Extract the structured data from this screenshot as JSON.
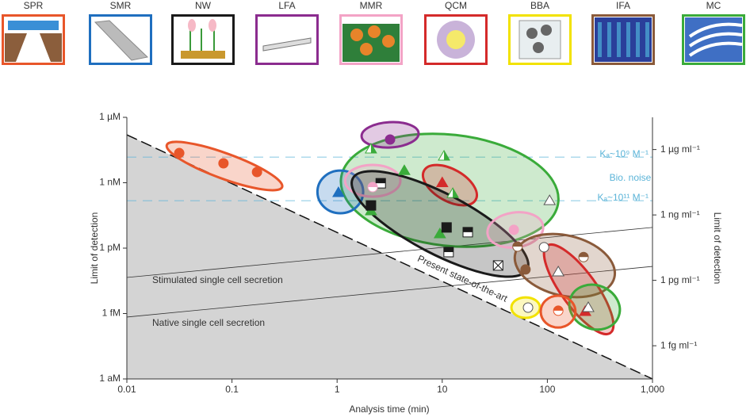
{
  "platforms": [
    {
      "label": "SPR",
      "color": "#e8562a"
    },
    {
      "label": "SMR",
      "color": "#1f6fbf"
    },
    {
      "label": "NW",
      "color": "#1a1a1a"
    },
    {
      "label": "LFA",
      "color": "#8b2c8f"
    },
    {
      "label": "MMR",
      "color": "#f3a3c6"
    },
    {
      "label": "QCM",
      "color": "#d42a2a"
    },
    {
      "label": "BBA",
      "color": "#f2e200"
    },
    {
      "label": "IFA",
      "color": "#8a5a3a"
    },
    {
      "label": "MC",
      "color": "#3aab3a"
    }
  ],
  "chart_data": {
    "type": "scatter",
    "log_x": true,
    "log_y": true,
    "xlabel": "Analysis time (min)",
    "ylabel": "Limit of detection",
    "y2label": "Limit of detection",
    "xlim": [
      0.01,
      1000
    ],
    "xticks": [
      0.01,
      0.1,
      1,
      10,
      100,
      {
        "value": 1000,
        "label": "1,000"
      }
    ],
    "ylim": [
      1e-18,
      1e-06
    ],
    "yticks": [
      {
        "value": 1e-18,
        "label": "1 aM"
      },
      {
        "value": 1e-15,
        "label": "1 fM"
      },
      {
        "value": 1e-12,
        "label": "1 pM"
      },
      {
        "value": 1e-09,
        "label": "1 nM"
      },
      {
        "value": 1e-06,
        "label": "1 µM"
      }
    ],
    "y2lim": [
      3e-17,
      3e-05
    ],
    "y2ticks": [
      {
        "value": 1e-15,
        "label": "1 fg ml⁻¹"
      },
      {
        "value": 1e-12,
        "label": "1 pg ml⁻¹"
      },
      {
        "value": 1e-09,
        "label": "1 ng ml⁻¹"
      },
      {
        "value": 1e-06,
        "label": "1 µg ml⁻¹"
      }
    ],
    "lines": [
      {
        "label": "Present state-of-the-art",
        "from": [
          0.01,
          1.58e-07
        ],
        "to": [
          1000,
          1e-18
        ],
        "color": "#111",
        "style": "dashed",
        "shade_below": true
      },
      {
        "label": "Stimulated single cell secretion",
        "from": [
          0.01,
          4.5e-14
        ],
        "to": [
          1000,
          8.9e-12
        ],
        "color": "#333",
        "style": "solid",
        "shade_below": false
      },
      {
        "label": "Native single cell secretion",
        "from": [
          0.01,
          6.9e-16
        ],
        "to": [
          1000,
          1.45e-13
        ],
        "color": "#333",
        "style": "solid",
        "shade_below": false
      },
      {
        "label": "Kₐ~10⁹ M⁻¹",
        "from": [
          0.01,
          1.5e-08
        ],
        "to": [
          1000,
          1.5e-08
        ],
        "color": "#5bb4d8",
        "style": "dashed",
        "shade_below": false
      },
      {
        "label": "Kₐ~10¹¹ M⁻¹",
        "from": [
          0.01,
          1.5e-10
        ],
        "to": [
          1000,
          1.5e-10
        ],
        "color": "#5bb4d8",
        "style": "dashed",
        "shade_below": false
      }
    ],
    "annotation": "Bio. noise",
    "regions": [
      {
        "name": "MC",
        "color": "#3aab3a",
        "from": [
          1.09,
          1.58e-09
        ],
        "to": [
          127,
          1.29e-10
        ],
        "width": 2.55
      },
      {
        "name": "SPR",
        "color": "#e8562a",
        "from": [
          0.024,
          5.4e-08
        ],
        "to": [
          0.3,
          6.3e-10
        ],
        "width": 0.58
      },
      {
        "name": "SMR",
        "color": "#1f6fbf",
        "from": [
          0.65,
          3.8e-10
        ],
        "to": [
          1.77,
          3.8e-10
        ],
        "width": 0.98
      },
      {
        "name": "LFA",
        "color": "#8b2c8f",
        "from": [
          1.71,
          1.34e-07
        ],
        "to": [
          5.96,
          1.87e-07
        ],
        "width": 0.58
      },
      {
        "name": "MMR",
        "color": "#f3a3c6",
        "from": [
          1.19,
          1.23e-09
        ],
        "to": [
          4.0,
          1.23e-09
        ],
        "width": 0.73
      },
      {
        "name": "QCM",
        "color": "#d42a2a",
        "from": [
          6.73,
          3.66e-09
        ],
        "to": [
          20.8,
          1.65e-10
        ],
        "width": 0.73
      },
      {
        "name": "NW",
        "color": "#1a1a1a",
        "from": [
          1.41,
          1.58e-09
        ],
        "to": [
          64.3,
          1.05e-13
        ],
        "width": 1.38
      },
      {
        "name": "MMR",
        "color": "#f3a3c6",
        "from": [
          27,
          4.5e-12
        ],
        "to": [
          91,
          1.05e-11
        ],
        "width": 0.8
      },
      {
        "name": "IFA",
        "color": "#8a5a3a",
        "from": [
          49.5,
          5.6e-13
        ],
        "to": [
          434,
          4.5e-14
        ],
        "width": 1.38
      },
      {
        "name": "QCM",
        "color": "#d42a2a",
        "from": [
          99.3,
          1.29e-12
        ],
        "to": [
          398,
          1.29e-16
        ],
        "width": 0.8
      },
      {
        "name": "MC",
        "color": "#3aab3a",
        "from": [
          167,
          5.6e-15
        ],
        "to": [
          474,
          6.9e-16
        ],
        "width": 1.0
      },
      {
        "name": "BBA",
        "color": "#f2e200",
        "from": [
          45.5,
          1.87e-15
        ],
        "to": [
          85,
          1.87e-15
        ],
        "width": 0.47
      },
      {
        "name": "SPR",
        "color": "#e8562a",
        "from": [
          86.5,
          1.23e-15
        ],
        "to": [
          185,
          1.23e-15
        ],
        "width": 0.73
      }
    ],
    "points": [
      {
        "x": 0.0315,
        "y": 2.3e-08,
        "color": "#e8562a",
        "shape": "circle",
        "fill": "filled"
      },
      {
        "x": 0.083,
        "y": 7.8e-09,
        "color": "#e8562a",
        "shape": "circle",
        "fill": "filled"
      },
      {
        "x": 0.173,
        "y": 3.1e-09,
        "color": "#e8562a",
        "shape": "circle",
        "fill": "filled"
      },
      {
        "x": 1.03,
        "y": 3.5e-10,
        "color": "#1f6fbf",
        "shape": "triangle",
        "fill": "filled"
      },
      {
        "x": 3.19,
        "y": 9.6e-08,
        "color": "#8b2c8f",
        "shape": "circle",
        "fill": "filled"
      },
      {
        "x": 2.1,
        "y": 3.5e-08,
        "color": "#3aab3a",
        "shape": "triangle",
        "fill": "half"
      },
      {
        "x": 4.36,
        "y": 3.6e-09,
        "color": "#3aab3a",
        "shape": "triangle",
        "fill": "filled"
      },
      {
        "x": 10.4,
        "y": 1.66e-08,
        "color": "#3aab3a",
        "shape": "triangle",
        "fill": "half"
      },
      {
        "x": 12.6,
        "y": 3.2e-10,
        "color": "#3aab3a",
        "shape": "triangle",
        "fill": "half"
      },
      {
        "x": 9.5,
        "y": 4.5e-12,
        "color": "#3aab3a",
        "shape": "triangle",
        "fill": "filled"
      },
      {
        "x": 2.1,
        "y": 5.1e-11,
        "color": "#3aab3a",
        "shape": "triangle",
        "fill": "filled"
      },
      {
        "x": 105,
        "y": 1.5e-10,
        "color": "#3aab3a",
        "shape": "triangle",
        "fill": "hollow"
      },
      {
        "x": 10,
        "y": 1e-09,
        "color": "#d42a2a",
        "shape": "triangle",
        "fill": "filled"
      },
      {
        "x": 2.1,
        "y": 9.1e-11,
        "color": "#1a1a1a",
        "shape": "square",
        "fill": "filled"
      },
      {
        "x": 11,
        "y": 8.9e-12,
        "color": "#1a1a1a",
        "shape": "square",
        "fill": "filled"
      },
      {
        "x": 2.6,
        "y": 9.5e-10,
        "color": "#1a1a1a",
        "shape": "square",
        "fill": "half"
      },
      {
        "x": 17.5,
        "y": 5.4e-12,
        "color": "#1a1a1a",
        "shape": "square",
        "fill": "half"
      },
      {
        "x": 11.5,
        "y": 6.6e-13,
        "color": "#1a1a1a",
        "shape": "square",
        "fill": "half"
      },
      {
        "x": 34,
        "y": 1.6e-13,
        "color": "#1a1a1a",
        "shape": "square",
        "fill": "crossed"
      },
      {
        "x": 48,
        "y": 6.9e-12,
        "color": "#f3a3c6",
        "shape": "circle",
        "fill": "filled"
      },
      {
        "x": 2.18,
        "y": 6.3e-10,
        "color": "#f3a3c6",
        "shape": "circle",
        "fill": "half"
      },
      {
        "x": 52,
        "y": 1.18e-12,
        "color": "#8a5a3a",
        "shape": "circle",
        "fill": "half"
      },
      {
        "x": 62,
        "y": 1.05e-13,
        "color": "#8a5a3a",
        "shape": "circle",
        "fill": "filled"
      },
      {
        "x": 93,
        "y": 1.1e-12,
        "color": "#d42a2a",
        "shape": "circle",
        "fill": "hollow"
      },
      {
        "x": 221,
        "y": 3.9e-13,
        "color": "#8a5a3a",
        "shape": "circle",
        "fill": "half"
      },
      {
        "x": 127,
        "y": 8.1e-14,
        "color": "#d42a2a",
        "shape": "triangle",
        "fill": "hollow"
      },
      {
        "x": 229,
        "y": 1.23e-15,
        "color": "#d42a2a",
        "shape": "triangle",
        "fill": "filled"
      },
      {
        "x": 245,
        "y": 1.87e-15,
        "color": "#3aab3a",
        "shape": "triangle",
        "fill": "hollow"
      },
      {
        "x": 65.5,
        "y": 1.87e-15,
        "color": "#1a1a1a",
        "shape": "circle",
        "fill": "hollow"
      },
      {
        "x": 127,
        "y": 1.35e-15,
        "color": "#e8562a",
        "shape": "circle",
        "fill": "half"
      }
    ]
  }
}
